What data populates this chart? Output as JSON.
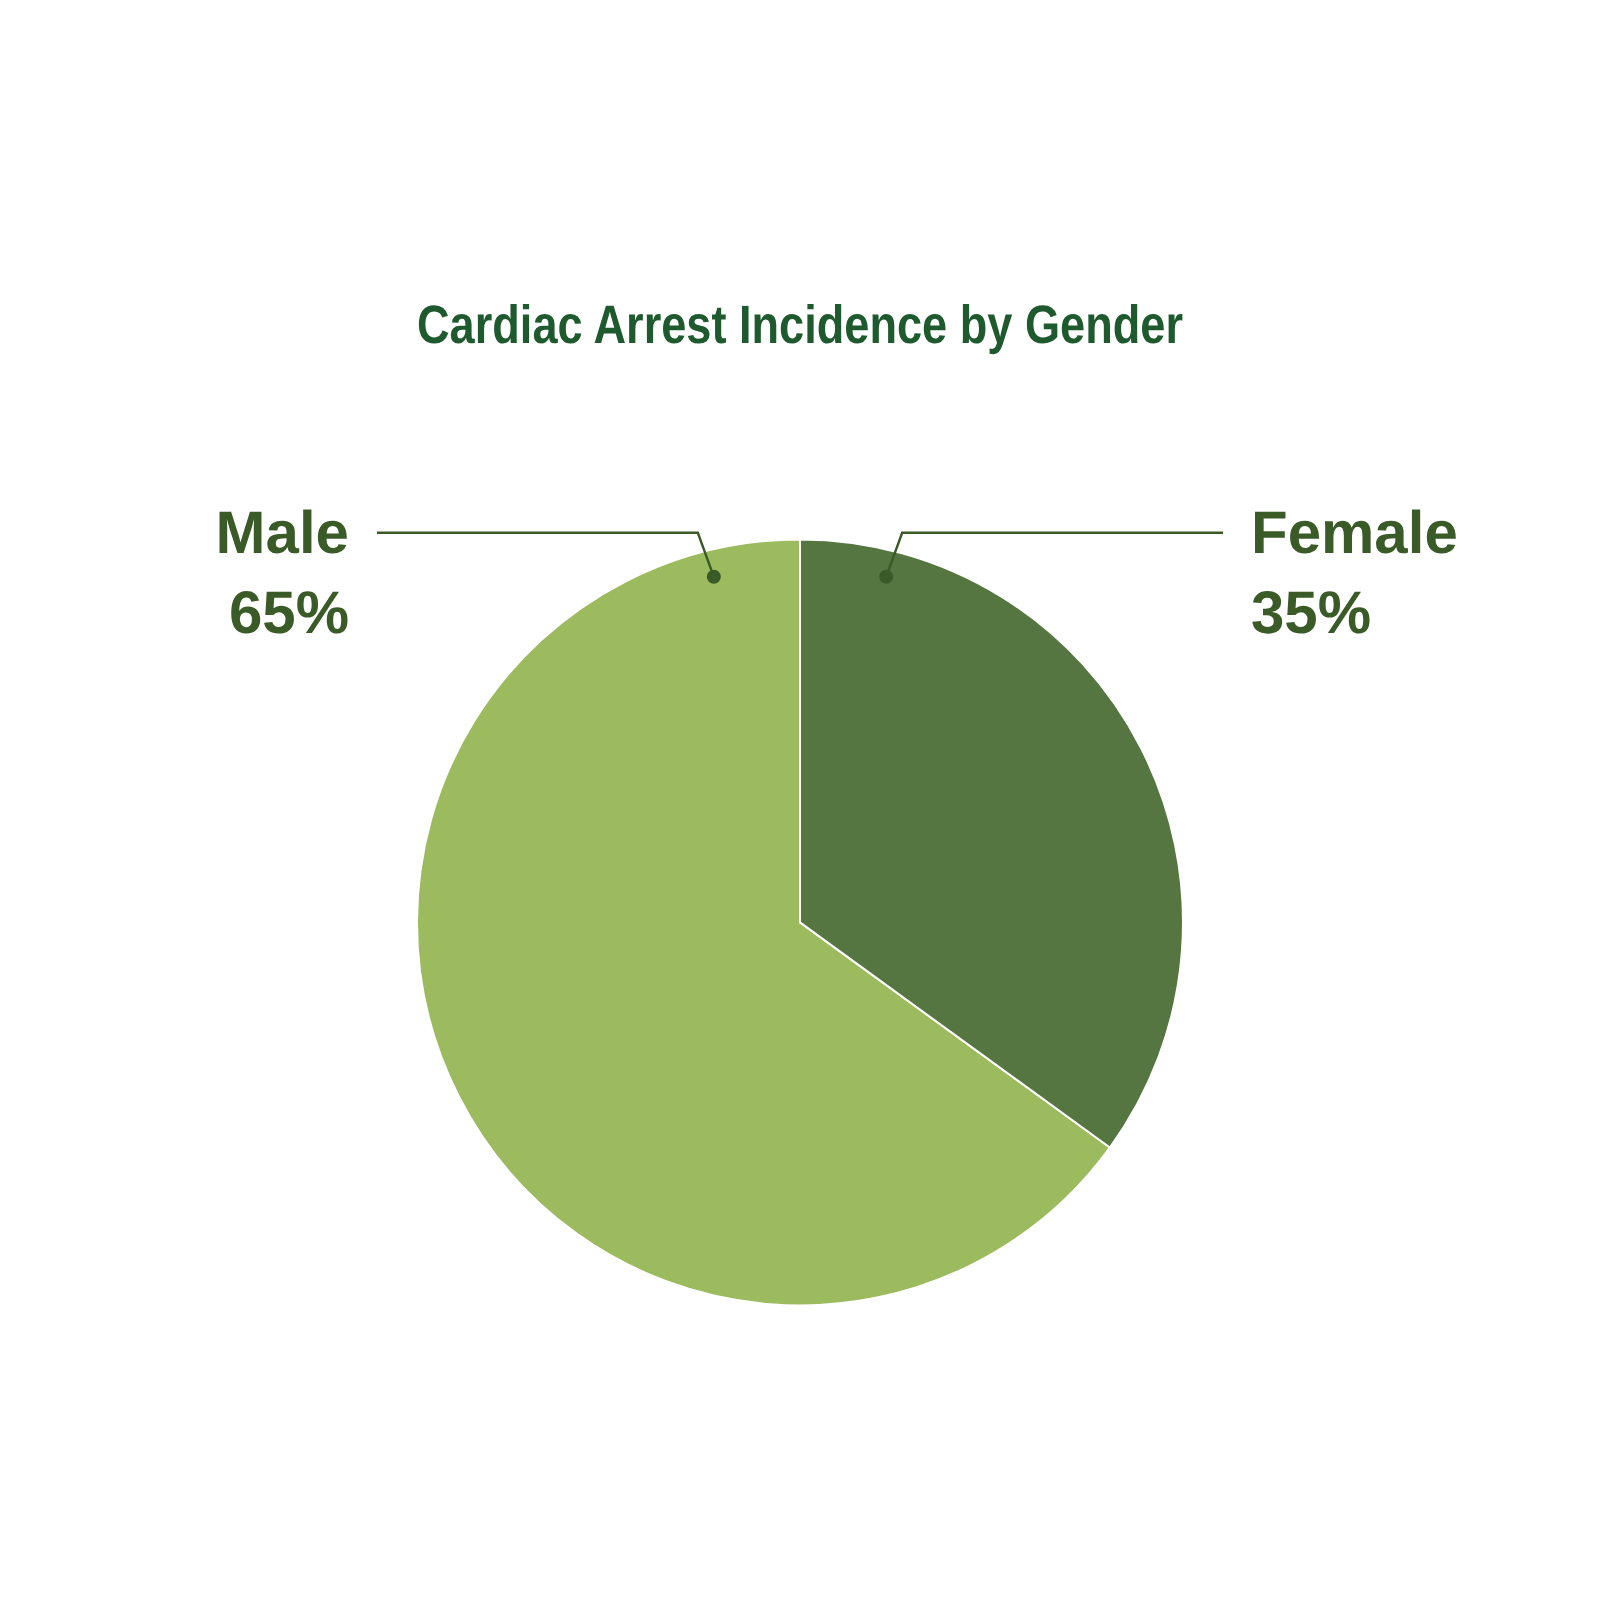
{
  "chart_data": {
    "type": "pie",
    "title": "Cardiac Arrest Incidence by Gender",
    "categories": [
      "Male",
      "Female"
    ],
    "values": [
      65,
      35
    ],
    "colors": [
      "#9cbb5e",
      "#557541"
    ],
    "value_labels": [
      "65%",
      "35%"
    ],
    "legend": false
  }
}
